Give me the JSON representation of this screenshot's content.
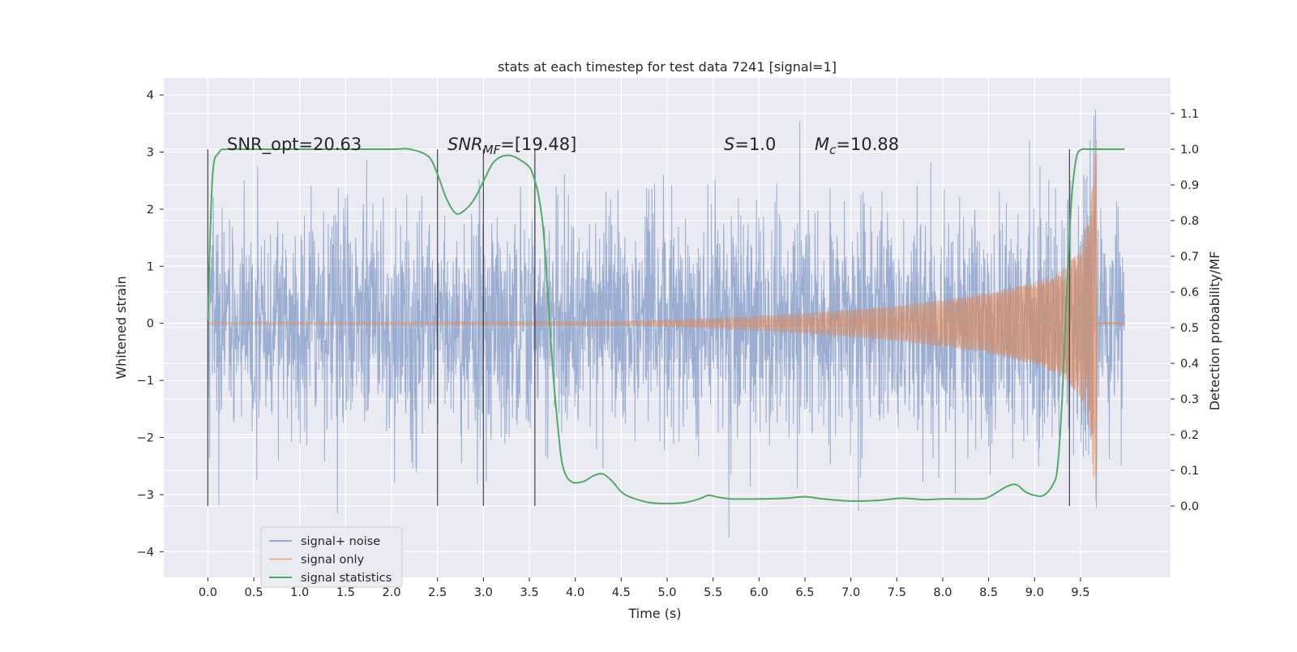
{
  "chart_data": {
    "type": "line",
    "title": "stats at each timestep for test data 7241 [signal=1]",
    "xlabel": "Time (s)",
    "ylabel_left": "Whitened strain",
    "ylabel_right": "Detection probability/MF",
    "xlim": [
      -0.48,
      10.48
    ],
    "ylim_left": [
      -4.45,
      4.3
    ],
    "ylim_right": [
      -0.2,
      1.2
    ],
    "x_ticks": [
      "0.0",
      "0.5",
      "1.0",
      "1.5",
      "2.0",
      "2.5",
      "3.0",
      "3.5",
      "4.0",
      "4.5",
      "5.0",
      "5.5",
      "6.0",
      "6.5",
      "7.0",
      "7.5",
      "8.0",
      "8.5",
      "9.0",
      "9.5"
    ],
    "x_tick_values": [
      0.0,
      0.5,
      1.0,
      1.5,
      2.0,
      2.5,
      3.0,
      3.5,
      4.0,
      4.5,
      5.0,
      5.5,
      6.0,
      6.5,
      7.0,
      7.5,
      8.0,
      8.5,
      9.0,
      9.5
    ],
    "y_left_ticks": [
      "4",
      "3",
      "2",
      "1",
      "0",
      "−1",
      "−2",
      "−3",
      "−4"
    ],
    "y_left_tick_values": [
      4,
      3,
      2,
      1,
      0,
      -1,
      -2,
      -3,
      -4
    ],
    "y_right_ticks": [
      "1.1",
      "1.0",
      "0.9",
      "0.8",
      "0.7",
      "0.6",
      "0.5",
      "0.4",
      "0.3",
      "0.2",
      "0.1",
      "0.0"
    ],
    "y_right_tick_values": [
      1.1,
      1.0,
      0.9,
      0.8,
      0.7,
      0.6,
      0.5,
      0.4,
      0.3,
      0.2,
      0.1,
      0.0
    ],
    "grid": true,
    "legend_position": "lower-left",
    "colors": {
      "noise": "#4c72b0",
      "signal": "#dd8452",
      "stats": "#55a868",
      "markers": "#333333",
      "background": "#eaeaf2",
      "grid": "#ffffff"
    },
    "series": [
      {
        "name": "signal+ noise",
        "axis": "left",
        "x_range": [
          0.0,
          9.98
        ],
        "amplitude_envelope": {
          "typical": 2.2,
          "peak_max": 3.9,
          "peak_min": -4.05
        }
      },
      {
        "name": "signal only",
        "axis": "left",
        "x_range": [
          0.0,
          9.98
        ],
        "envelope": {
          "x": [
            0.0,
            3.0,
            4.5,
            5.0,
            5.5,
            6.0,
            6.5,
            7.0,
            7.5,
            8.0,
            8.5,
            9.0,
            9.3,
            9.5,
            9.6,
            9.65,
            9.68
          ],
          "amplitude": [
            0.02,
            0.03,
            0.04,
            0.06,
            0.09,
            0.13,
            0.18,
            0.24,
            0.31,
            0.41,
            0.53,
            0.72,
            0.92,
            1.3,
            1.9,
            2.9,
            3.3
          ]
        }
      },
      {
        "name": "signal statistics",
        "axis": "right",
        "x": [
          0.0,
          0.05,
          0.12,
          0.2,
          0.4,
          1.0,
          1.5,
          2.0,
          2.2,
          2.4,
          2.5,
          2.6,
          2.7,
          2.8,
          2.9,
          3.0,
          3.1,
          3.2,
          3.3,
          3.4,
          3.5,
          3.55,
          3.6,
          3.65,
          3.7,
          3.75,
          3.8,
          3.85,
          3.9,
          3.95,
          4.0,
          4.1,
          4.2,
          4.3,
          4.4,
          4.5,
          4.6,
          4.8,
          5.0,
          5.2,
          5.35,
          5.45,
          5.55,
          5.7,
          6.0,
          6.3,
          6.5,
          6.7,
          7.0,
          7.3,
          7.55,
          7.8,
          8.0,
          8.4,
          8.5,
          8.6,
          8.7,
          8.8,
          8.9,
          9.0,
          9.1,
          9.2,
          9.25,
          9.3,
          9.35,
          9.4,
          9.45,
          9.5,
          9.6,
          9.7,
          9.98
        ],
        "values": [
          0.52,
          0.92,
          0.99,
          1.0,
          1.0,
          1.0,
          1.0,
          1.0,
          1.0,
          0.98,
          0.93,
          0.86,
          0.82,
          0.83,
          0.86,
          0.91,
          0.96,
          0.98,
          0.982,
          0.97,
          0.95,
          0.92,
          0.87,
          0.78,
          0.6,
          0.4,
          0.25,
          0.13,
          0.085,
          0.07,
          0.065,
          0.07,
          0.085,
          0.09,
          0.07,
          0.04,
          0.025,
          0.01,
          0.007,
          0.01,
          0.02,
          0.03,
          0.025,
          0.02,
          0.02,
          0.022,
          0.026,
          0.02,
          0.014,
          0.016,
          0.022,
          0.018,
          0.02,
          0.02,
          0.025,
          0.04,
          0.055,
          0.06,
          0.04,
          0.03,
          0.03,
          0.06,
          0.11,
          0.3,
          0.6,
          0.85,
          0.97,
          0.998,
          1.0,
          1.0,
          1.0
        ]
      }
    ],
    "vertical_markers": [
      {
        "x": 0.0,
        "ymin": -3.2,
        "ymax": 3.05
      },
      {
        "x": 2.5,
        "ymin": -3.2,
        "ymax": 3.05
      },
      {
        "x": 3.0,
        "ymin": -3.2,
        "ymax": 3.05
      },
      {
        "x": 3.56,
        "ymin": -3.2,
        "ymax": 3.05
      },
      {
        "x": 9.38,
        "ymin": -3.2,
        "ymax": 3.05
      }
    ],
    "annotations": [
      {
        "parts": [
          {
            "t": "SNR_opt=20.63",
            "style": "normal"
          }
        ]
      },
      {
        "parts": [
          {
            "t": "SNR",
            "style": "italic"
          },
          {
            "t": "MF",
            "style": "italic-sub"
          },
          {
            "t": "=[19.48]",
            "style": "normal"
          }
        ]
      },
      {
        "parts": [
          {
            "t": "S",
            "style": "italic"
          },
          {
            "t": "=1.0",
            "style": "normal"
          }
        ]
      },
      {
        "parts": [
          {
            "t": "M",
            "style": "italic"
          },
          {
            "t": "c",
            "style": "italic-sub"
          },
          {
            "t": "=10.88",
            "style": "normal"
          }
        ]
      }
    ],
    "legend": [
      "signal+ noise",
      "signal only",
      "signal statistics"
    ]
  }
}
